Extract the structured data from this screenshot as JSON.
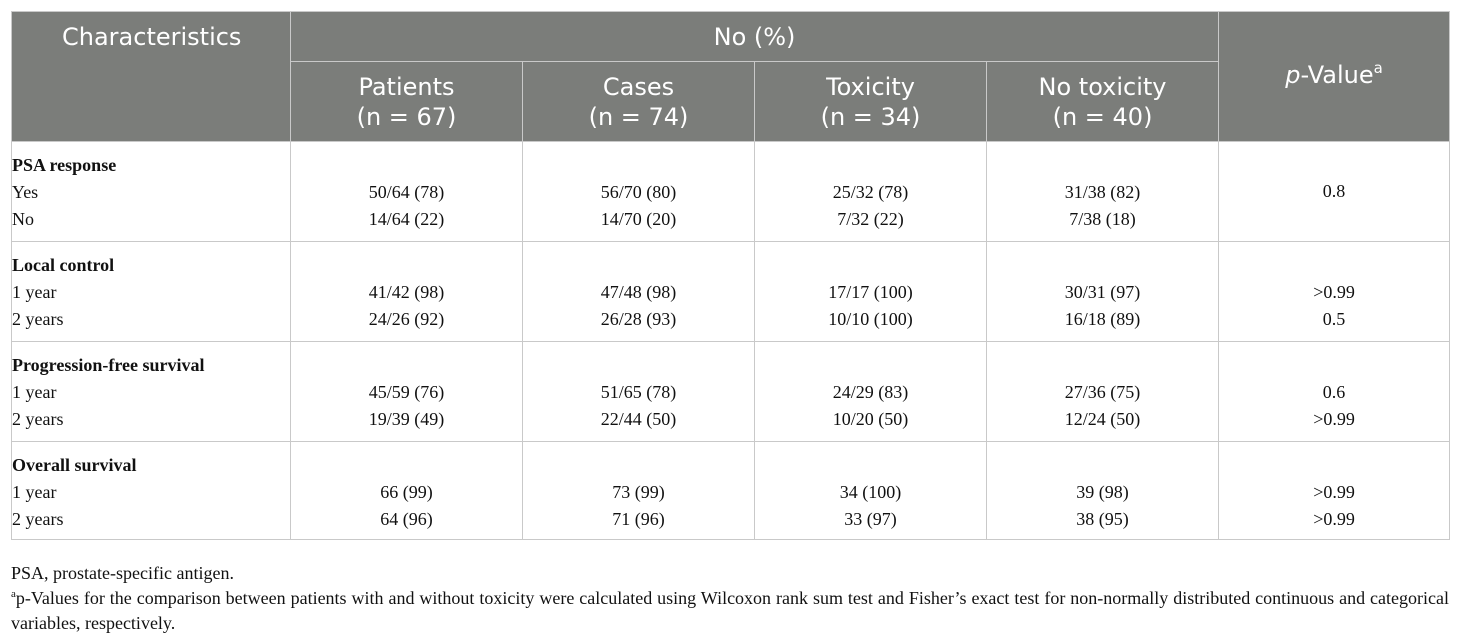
{
  "header": {
    "characteristics": "Characteristics",
    "group": "No (%)",
    "columns": [
      {
        "name": "Patients",
        "n": "(n = 67)"
      },
      {
        "name": "Cases",
        "n": "(n = 74)"
      },
      {
        "name": "Toxicity",
        "n": "(n = 34)"
      },
      {
        "name": "No toxicity",
        "n": "(n = 40)"
      }
    ],
    "pvalue_p": "p",
    "pvalue_rest": "-Value",
    "pvalue_sup": "a"
  },
  "sections": [
    {
      "title": "PSA response",
      "rows": [
        {
          "label": "Yes",
          "values": [
            "50/64 (78)",
            "56/70 (80)",
            "25/32 (78)",
            "31/38 (82)"
          ]
        },
        {
          "label": "No",
          "values": [
            "14/64 (22)",
            "14/70 (20)",
            "7/32 (22)",
            "7/38 (18)"
          ]
        }
      ],
      "pvalue": "0.8"
    },
    {
      "title": "Local control",
      "rows": [
        {
          "label": "1 year",
          "values": [
            "41/42 (98)",
            "47/48 (98)",
            "17/17 (100)",
            "30/31 (97)"
          ],
          "pvalue": ">0.99"
        },
        {
          "label": "2 years",
          "values": [
            "24/26 (92)",
            "26/28 (93)",
            "10/10 (100)",
            "16/18 (89)"
          ],
          "pvalue": "0.5"
        }
      ]
    },
    {
      "title": "Progression-free survival",
      "rows": [
        {
          "label": "1 year",
          "values": [
            "45/59 (76)",
            "51/65 (78)",
            "24/29 (83)",
            "27/36 (75)"
          ],
          "pvalue": "0.6"
        },
        {
          "label": "2 years",
          "values": [
            "19/39 (49)",
            "22/44 (50)",
            "10/20 (50)",
            "12/24 (50)"
          ],
          "pvalue": ">0.99"
        }
      ]
    },
    {
      "title": "Overall survival",
      "rows": [
        {
          "label": "1 year",
          "values": [
            "66 (99)",
            "73 (99)",
            "34 (100)",
            "39 (98)"
          ],
          "pvalue": ">0.99"
        },
        {
          "label": "2 years",
          "values": [
            "64 (96)",
            "71 (96)",
            "33 (97)",
            "38 (95)"
          ],
          "pvalue": ">0.99"
        }
      ]
    }
  ],
  "footnotes": {
    "abbrev": "PSA, prostate-specific antigen.",
    "note_marker": "a",
    "note_text": "p-Values for the comparison between patients with and without toxicity were calculated using Wilcoxon rank sum test and Fisher’s exact test for non-normally distributed continuous and categorical variables, respectively."
  },
  "colors": {
    "header_bg": "#7b7d7a",
    "header_text": "#ffffff",
    "border": "#c9c9c9"
  }
}
